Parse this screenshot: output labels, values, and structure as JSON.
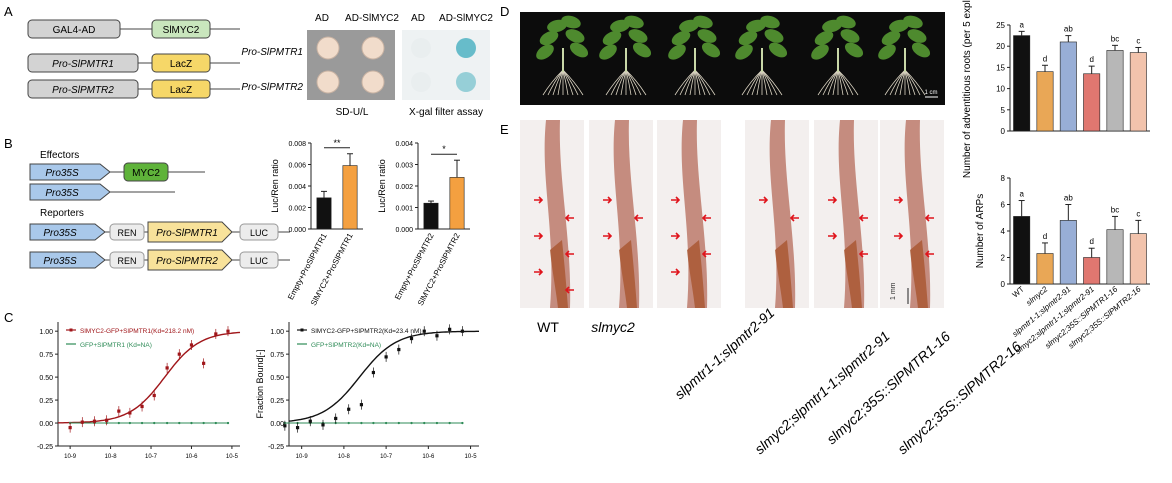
{
  "panel_letters": {
    "a": "A",
    "b": "B",
    "c": "C",
    "d": "D",
    "e": "E"
  },
  "panel_a": {
    "constructs": [
      {
        "left": "GAL4-AD",
        "right": "SlMYC2"
      },
      {
        "left": "Pro-SlPMTR1",
        "right": "LacZ"
      },
      {
        "left": "Pro-SlPMTR2",
        "right": "LacZ"
      }
    ],
    "plate_headers": [
      "AD",
      "AD-SlMYC2",
      "AD",
      "AD-SlMYC2"
    ],
    "row_labels": [
      "Pro-SlPMTR1",
      "Pro-SlPMTR2"
    ],
    "captions": [
      "SD-U/L",
      "X-gal filter assay"
    ],
    "colors": {
      "ad": "#d2d2d2",
      "myc": "#c9e6bd",
      "lacz": "#f6d768",
      "blue": "#4fb3c2"
    }
  },
  "panel_b": {
    "effectors_label": "Effectors",
    "reporters_label": "Reporters",
    "effector_rows": [
      [
        "Pro35S",
        "MYC2"
      ],
      [
        "Pro35S",
        ""
      ]
    ],
    "reporter_rows": [
      [
        "Pro35S",
        "REN",
        "Pro-SlPMTR1",
        "LUC"
      ],
      [
        "Pro35S",
        "REN",
        "Pro-SlPMTR2",
        "LUC"
      ]
    ]
  },
  "panel_c": {
    "legend1": [
      "SlMYC2-GFP+SlPMTR1(Kd=218.2 nM)",
      "GFP+SlPMTR1 (Kd=NA)"
    ],
    "legend2": [
      "SlMYC2-GFP+SlPMTR2(Kd=23.4 nM)",
      "GFP+SlPMTR2(Kd=NA)"
    ],
    "ylabel": "Fraction Bound[-]",
    "yticks": [
      "1.00",
      "0.75",
      "0.50",
      "0.25",
      "0.00",
      "-0.25"
    ],
    "xticks1": [
      "10-9",
      "10-8",
      "10-7",
      "10-6",
      "10-5"
    ],
    "xticks2": [
      "10-9",
      "10-8",
      "10-7",
      "10-6",
      "10-5"
    ]
  },
  "panel_d": {
    "scale": "1 cm"
  },
  "panel_e": {
    "scale": "1 mm",
    "genotypes": [
      "WT",
      "slmyc2",
      "slpmtr1-1;slpmtr2-91",
      "slmyc2;slpmtr1-1;slpmtr2-91",
      "slmyc2;35S::SlPMTR1-16",
      "slmyc2;35S::SlPMTR2-16"
    ]
  },
  "chart_data": [
    {
      "type": "bar",
      "title": "",
      "ylabel": "Luc/Ren ratio",
      "categories": [
        "Empty+ProSlPMTR1",
        "SlMYC2+ProSlPMTR1"
      ],
      "values": [
        0.0029,
        0.0059
      ],
      "errors": [
        0.0006,
        0.0011
      ],
      "yticks": [
        "0.008",
        "0.006",
        "0.004",
        "0.002",
        "0.000"
      ],
      "ylim": [
        0,
        0.008
      ],
      "significance": "**",
      "colors": [
        "#111111",
        "#f4a040"
      ]
    },
    {
      "type": "bar",
      "title": "",
      "ylabel": "Luc/Ren ratio",
      "categories": [
        "Empty+ProSlPMTR2",
        "SlMYC2+ProSlPMTR2"
      ],
      "values": [
        0.0012,
        0.0024
      ],
      "errors": [
        0.0001,
        0.0008
      ],
      "yticks": [
        "0.004",
        "0.003",
        "0.002",
        "0.001",
        "0.000"
      ],
      "ylim": [
        0,
        0.004
      ],
      "significance": "*",
      "colors": [
        "#111111",
        "#f4a040"
      ]
    },
    {
      "type": "scatter",
      "xlabel": "",
      "ylabel": "Fraction Bound[-]",
      "log_x": true,
      "series": [
        {
          "name": "SlMYC2-GFP+SlPMTR1(Kd=218.2 nM)",
          "x": [
            1e-09,
            2e-09,
            4e-09,
            8e-09,
            1.6e-08,
            3e-08,
            6e-08,
            1.2e-07,
            2.5e-07,
            5e-07,
            1e-06,
            2e-06,
            4e-06,
            8e-06
          ],
          "y": [
            -0.05,
            0.01,
            0.02,
            0.03,
            0.13,
            0.11,
            0.18,
            0.3,
            0.6,
            0.75,
            0.85,
            0.65,
            0.97,
            1.0
          ]
        },
        {
          "name": "GFP+SlPMTR1 (Kd=NA)",
          "x": [
            1e-09,
            2e-09,
            4e-09,
            8e-09,
            1.6e-08,
            3e-08,
            6e-08,
            1.2e-07,
            2.5e-07,
            5e-07,
            1e-06,
            2e-06,
            4e-06,
            8e-06
          ],
          "y": [
            0,
            0,
            0,
            0,
            0,
            0,
            0,
            0,
            0,
            0,
            0,
            0,
            0,
            0
          ]
        }
      ],
      "ylim": [
        -0.25,
        1.1
      ]
    },
    {
      "type": "scatter",
      "xlabel": "",
      "ylabel": "Fraction Bound[-]",
      "log_x": true,
      "series": [
        {
          "name": "SlMYC2-GFP+SlPMTR2(Kd=23.4 nM)",
          "x": [
            4e-10,
            8e-10,
            1.6e-09,
            3.2e-09,
            6.4e-09,
            1.3e-08,
            2.6e-08,
            5e-08,
            1e-07,
            2e-07,
            4e-07,
            8e-07,
            1.6e-06,
            3.2e-06,
            6.4e-06
          ],
          "y": [
            -0.03,
            -0.05,
            0.02,
            -0.02,
            0.05,
            0.15,
            0.2,
            0.55,
            0.72,
            0.8,
            0.92,
            1.0,
            0.95,
            1.02,
            1.0
          ]
        },
        {
          "name": "GFP+SlPMTR2(Kd=NA)",
          "x": [
            4e-10,
            8e-10,
            1.6e-09,
            3.2e-09,
            6.4e-09,
            1.3e-08,
            2.6e-08,
            5e-08,
            1e-07,
            2e-07,
            4e-07,
            8e-07,
            1.6e-06,
            3.2e-06,
            6.4e-06
          ],
          "y": [
            0,
            0,
            0,
            0,
            0,
            0,
            0,
            0,
            0,
            0,
            0,
            0,
            0,
            0,
            0
          ]
        }
      ],
      "ylim": [
        -0.25,
        1.1
      ]
    },
    {
      "type": "bar",
      "ylabel": "Number of adventitious roots (per 5 explants)",
      "categories": [
        "WT",
        "slmyc2",
        "slpmtr1-1;slpmtr2-91",
        "slmyc2;slpmtr1-1;slpmtr2-91",
        "slmyc2;35S::SlPMTR1-16",
        "slmyc2;35S::SlPMTR2-16"
      ],
      "values": [
        22.5,
        14.0,
        21.0,
        13.5,
        19.0,
        18.5
      ],
      "errors": [
        1.0,
        1.5,
        1.5,
        1.8,
        1.2,
        1.2
      ],
      "letters": [
        "a",
        "d",
        "ab",
        "d",
        "bc",
        "c"
      ],
      "yticks": [
        "25",
        "20",
        "15",
        "10",
        "5",
        "0"
      ],
      "ylim": [
        0,
        25
      ],
      "colors": [
        "#111111",
        "#e9a756",
        "#98aed6",
        "#e07770",
        "#b7b7b7",
        "#f2c3ac"
      ]
    },
    {
      "type": "bar",
      "ylabel": "Number of ARPs",
      "categories": [
        "WT",
        "slmyc2",
        "slpmtr1-1;slpmtr2-91",
        "slmyc2;slpmtr1-1;slpmtr2-91",
        "slmyc2;35S::SlPMTR1-16",
        "slmyc2;35S::SlPMTR2-16"
      ],
      "values": [
        5.1,
        2.3,
        4.8,
        2.0,
        4.1,
        3.8
      ],
      "errors": [
        1.2,
        0.8,
        1.2,
        0.7,
        1.0,
        1.0
      ],
      "letters": [
        "a",
        "d",
        "ab",
        "d",
        "bc",
        "c"
      ],
      "yticks": [
        "8",
        "6",
        "4",
        "2",
        "0"
      ],
      "ylim": [
        0,
        8
      ],
      "colors": [
        "#111111",
        "#e9a756",
        "#98aed6",
        "#e07770",
        "#b7b7b7",
        "#f2c3ac"
      ]
    }
  ]
}
